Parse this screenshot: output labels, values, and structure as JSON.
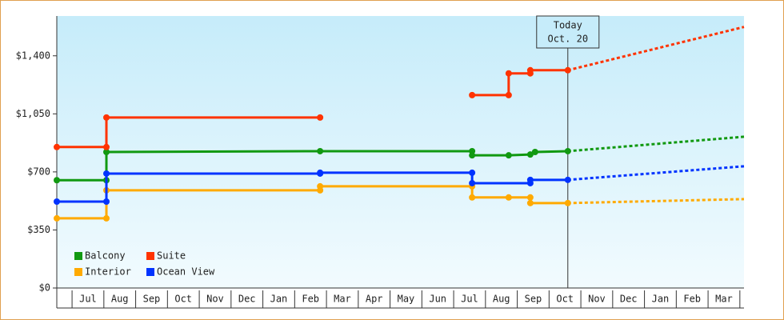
{
  "chart_data": {
    "type": "line",
    "annotation": {
      "x": 16.59,
      "lines": [
        "Today",
        "Oct. 20"
      ]
    },
    "xlim": [
      0.52,
      22.13
    ],
    "xticks": [
      {
        "value": 1.5,
        "label": "Jul"
      },
      {
        "value": 2.5,
        "label": "Aug"
      },
      {
        "value": 3.5,
        "label": "Sep"
      },
      {
        "value": 4.5,
        "label": "Oct"
      },
      {
        "value": 5.5,
        "label": "Nov"
      },
      {
        "value": 6.5,
        "label": "Dec"
      },
      {
        "value": 7.5,
        "label": "Jan"
      },
      {
        "value": 8.5,
        "label": "Feb"
      },
      {
        "value": 9.5,
        "label": "Mar"
      },
      {
        "value": 10.5,
        "label": "Apr"
      },
      {
        "value": 11.5,
        "label": "May"
      },
      {
        "value": 12.5,
        "label": "Jun"
      },
      {
        "value": 13.5,
        "label": "Jul"
      },
      {
        "value": 14.5,
        "label": "Aug"
      },
      {
        "value": 15.5,
        "label": "Sep"
      },
      {
        "value": 16.5,
        "label": "Oct"
      },
      {
        "value": 17.5,
        "label": "Nov"
      },
      {
        "value": 18.5,
        "label": "Dec"
      },
      {
        "value": 19.5,
        "label": "Jan"
      },
      {
        "value": 20.5,
        "label": "Feb"
      },
      {
        "value": 21.5,
        "label": "Mar"
      }
    ],
    "ylim": [
      0,
      1640
    ],
    "yticks": [
      {
        "value": 0,
        "label": "$0"
      },
      {
        "value": 350,
        "label": "$350"
      },
      {
        "value": 700,
        "label": "$700"
      },
      {
        "value": 1050,
        "label": "$1,050"
      },
      {
        "value": 1400,
        "label": "$1,400"
      }
    ],
    "series": [
      {
        "name": "Balcony",
        "color": "#119911",
        "x": [
          0.52,
          2.08,
          2.08,
          8.8,
          13.58,
          13.58,
          14.73,
          15.41,
          15.56,
          16.59
        ],
        "values": [
          650,
          650,
          820,
          825,
          825,
          800,
          800,
          805,
          820,
          825
        ],
        "forecast_x": [
          22.13
        ],
        "forecast_values": [
          912
        ]
      },
      {
        "name": "Suite",
        "color": "#ff3300",
        "x": [
          0.52,
          2.08,
          2.08,
          8.8,
          null,
          13.58,
          14.73,
          14.73,
          15.41,
          15.41,
          16.59
        ],
        "values": [
          850,
          850,
          1028,
          1028,
          null,
          1163,
          1163,
          1294,
          1294,
          1313,
          1313
        ],
        "forecast_x": [
          22.13
        ],
        "forecast_values": [
          1574
        ]
      },
      {
        "name": "Interior",
        "color": "#ffaa00",
        "x": [
          0.52,
          2.08,
          2.08,
          8.8,
          8.8,
          13.58,
          13.58,
          14.73,
          15.41,
          15.41,
          16.59
        ],
        "values": [
          420,
          420,
          589,
          589,
          613,
          613,
          546,
          546,
          546,
          512,
          512
        ],
        "forecast_x": [
          22.13
        ],
        "forecast_values": [
          536
        ]
      },
      {
        "name": "Ocean View",
        "color": "#0033ff",
        "x": [
          0.52,
          2.08,
          2.08,
          8.8,
          8.8,
          13.58,
          13.58,
          15.41,
          15.41,
          16.59
        ],
        "values": [
          521,
          521,
          690,
          690,
          695,
          695,
          632,
          632,
          652,
          652
        ],
        "forecast_x": [
          22.13
        ],
        "forecast_values": [
          734
        ]
      }
    ]
  }
}
